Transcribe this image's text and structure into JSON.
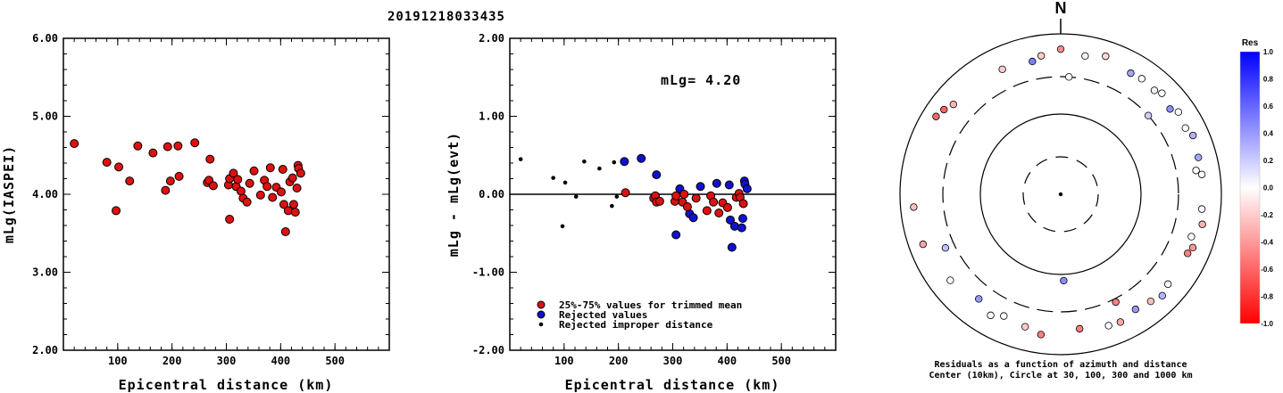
{
  "page_title": "20191218033435",
  "chart_data": [
    {
      "type": "scatter",
      "title": "",
      "xlabel": "Epicentral distance (km)",
      "ylabel": "mLg(IASPEI)",
      "xlim": [
        0,
        600
      ],
      "ylim": [
        2.0,
        6.0
      ],
      "x_ticks": [
        "100",
        "200",
        "300",
        "400",
        "500"
      ],
      "y_ticks": [
        "2.00",
        "3.00",
        "4.00",
        "5.00",
        "6.00"
      ],
      "marker_color": "#dd1111",
      "series": [
        {
          "points": [
            [
              20,
              4.65
            ],
            [
              80,
              4.41
            ],
            [
              97,
              3.79
            ],
            [
              102,
              4.35
            ],
            [
              122,
              4.17
            ],
            [
              137,
              4.62
            ],
            [
              165,
              4.53
            ],
            [
              188,
              4.05
            ],
            [
              192,
              4.61
            ],
            [
              197,
              4.17
            ],
            [
              211,
              4.62
            ],
            [
              213,
              4.23
            ],
            [
              242,
              4.66
            ],
            [
              265,
              4.15
            ],
            [
              268,
              4.18
            ],
            [
              270,
              4.45
            ],
            [
              276,
              4.11
            ],
            [
              304,
              4.12
            ],
            [
              306,
              3.68
            ],
            [
              306,
              4.2
            ],
            [
              313,
              4.27
            ],
            [
              318,
              4.1
            ],
            [
              321,
              4.19
            ],
            [
              327,
              4.04
            ],
            [
              331,
              3.95
            ],
            [
              338,
              3.9
            ],
            [
              343,
              4.14
            ],
            [
              351,
              4.3
            ],
            [
              363,
              3.99
            ],
            [
              370,
              4.18
            ],
            [
              375,
              4.1
            ],
            [
              381,
              4.34
            ],
            [
              385,
              3.96
            ],
            [
              392,
              4.09
            ],
            [
              401,
              4.03
            ],
            [
              404,
              4.32
            ],
            [
              406,
              3.87
            ],
            [
              409,
              3.52
            ],
            [
              414,
              3.79
            ],
            [
              417,
              4.16
            ],
            [
              422,
              4.21
            ],
            [
              424,
              3.87
            ],
            [
              427,
              3.77
            ],
            [
              430,
              4.08
            ],
            [
              432,
              4.37
            ],
            [
              433,
              4.33
            ],
            [
              437,
              4.27
            ]
          ]
        }
      ]
    },
    {
      "type": "scatter",
      "title": "",
      "xlabel": "Epicentral distance (km)",
      "ylabel": "mLg - mLg(evt)",
      "xlim": [
        0,
        600
      ],
      "ylim": [
        -2.0,
        2.0
      ],
      "x_ticks": [
        "100",
        "200",
        "300",
        "400",
        "500"
      ],
      "y_ticks": [
        "-2.00",
        "-1.00",
        "0.00",
        "1.00",
        "2.00"
      ],
      "annotation": "mLg= 4.20",
      "reference_line": 0.0,
      "series": [
        {
          "name": "25%-75% values for trimmed mean",
          "color": "#dd1111",
          "points": [
            [
              213,
              0.02
            ],
            [
              265,
              -0.05
            ],
            [
              268,
              -0.02
            ],
            [
              270,
              -0.1
            ],
            [
              276,
              -0.09
            ],
            [
              304,
              -0.09
            ],
            [
              306,
              -0.02
            ],
            [
              318,
              -0.1
            ],
            [
              321,
              0.0
            ],
            [
              327,
              -0.16
            ],
            [
              343,
              -0.05
            ],
            [
              363,
              -0.21
            ],
            [
              370,
              -0.02
            ],
            [
              375,
              -0.1
            ],
            [
              385,
              -0.24
            ],
            [
              392,
              -0.11
            ],
            [
              401,
              -0.17
            ],
            [
              417,
              -0.04
            ],
            [
              422,
              0.01
            ],
            [
              424,
              -0.04
            ],
            [
              430,
              -0.12
            ]
          ]
        },
        {
          "name": "Rejected values",
          "color": "#1111cc",
          "points": [
            [
              211,
              0.42
            ],
            [
              242,
              0.46
            ],
            [
              270,
              0.25
            ],
            [
              306,
              -0.52
            ],
            [
              313,
              0.07
            ],
            [
              331,
              -0.25
            ],
            [
              338,
              -0.3
            ],
            [
              351,
              0.1
            ],
            [
              381,
              0.14
            ],
            [
              404,
              0.12
            ],
            [
              406,
              -0.33
            ],
            [
              409,
              -0.68
            ],
            [
              414,
              -0.41
            ],
            [
              427,
              -0.43
            ],
            [
              432,
              0.17
            ],
            [
              433,
              0.13
            ],
            [
              437,
              0.07
            ],
            [
              429,
              -0.31
            ]
          ]
        },
        {
          "name": "Rejected improper distance",
          "color": "#000000",
          "points": [
            [
              20,
              0.45
            ],
            [
              80,
              0.21
            ],
            [
              97,
              -0.41
            ],
            [
              102,
              0.15
            ],
            [
              122,
              -0.03
            ],
            [
              137,
              0.42
            ],
            [
              165,
              0.33
            ],
            [
              188,
              -0.15
            ],
            [
              192,
              0.41
            ],
            [
              197,
              -0.03
            ]
          ]
        }
      ]
    },
    {
      "type": "scatter",
      "title": "N",
      "xlabel": "",
      "ylabel": "",
      "caption_lines": [
        "Residuals as a function of azimuth and distance",
        "Center (10km), Circle at 30, 100, 300 and 1000 km"
      ],
      "colorbar": {
        "label": "Res",
        "ticks": [
          "1.0",
          "0.8",
          "0.6",
          "0.4",
          "0.2",
          "0.0",
          "-0.2",
          "-0.4",
          "-0.6",
          "-0.8",
          "-1.0"
        ],
        "range": [
          -1.0,
          1.0
        ]
      },
      "series": [
        {
          "name": "residuals",
          "points": [
            {
              "azimuth": 0,
              "distance_km": 650,
              "res": -0.45
            },
            {
              "azimuth": 10,
              "distance_km": 570,
              "res": 0.05
            },
            {
              "azimuth": 18,
              "distance_km": 650,
              "res": -0.15
            },
            {
              "azimuth": 335,
              "distance_km": 530,
              "res": -0.2
            },
            {
              "azimuth": 348,
              "distance_km": 500,
              "res": 0.5
            },
            {
              "azimuth": 352,
              "distance_km": 560,
              "res": -0.2
            },
            {
              "azimuth": 4,
              "distance_km": 300,
              "res": 0.0
            },
            {
              "azimuth": 30,
              "distance_km": 560,
              "res": 0.35
            },
            {
              "azimuth": 35,
              "distance_km": 580,
              "res": 0.0
            },
            {
              "azimuth": 42,
              "distance_km": 560,
              "res": 0.05
            },
            {
              "azimuth": 45,
              "distance_km": 610,
              "res": 0.0
            },
            {
              "azimuth": 52,
              "distance_km": 540,
              "res": 0.45
            },
            {
              "azimuth": 48,
              "distance_km": 300,
              "res": 0.2
            },
            {
              "azimuth": 55,
              "distance_km": 620,
              "res": 0.0
            },
            {
              "azimuth": 62,
              "distance_km": 580,
              "res": 0.0
            },
            {
              "azimuth": 66,
              "distance_km": 640,
              "res": 0.3
            },
            {
              "azimuth": 75,
              "distance_km": 600,
              "res": 0.35
            },
            {
              "azimuth": 80,
              "distance_km": 520,
              "res": 0.0
            },
            {
              "azimuth": 82,
              "distance_km": 600,
              "res": 0.0
            },
            {
              "azimuth": 96,
              "distance_km": 590,
              "res": 0.0
            },
            {
              "azimuth": 102,
              "distance_km": 640,
              "res": -0.3
            },
            {
              "azimuth": 108,
              "distance_km": 520,
              "res": 0.0
            },
            {
              "azimuth": 112,
              "distance_km": 600,
              "res": -0.4
            },
            {
              "azimuth": 115,
              "distance_km": 560,
              "res": -0.5
            },
            {
              "azimuth": 130,
              "distance_km": 560,
              "res": 0.0
            },
            {
              "azimuth": 135,
              "distance_km": 620,
              "res": 0.3
            },
            {
              "azimuth": 140,
              "distance_km": 560,
              "res": -0.25
            },
            {
              "azimuth": 147,
              "distance_km": 520,
              "res": 0.4
            },
            {
              "azimuth": 155,
              "distance_km": 580,
              "res": -0.35
            },
            {
              "azimuth": 160,
              "distance_km": 560,
              "res": 0.0
            },
            {
              "azimuth": 153,
              "distance_km": 330,
              "res": -0.5
            },
            {
              "azimuth": 172,
              "distance_km": 500,
              "res": -0.5
            },
            {
              "azimuth": 188,
              "distance_km": 590,
              "res": -0.5
            },
            {
              "azimuth": 178,
              "distance_km": 120,
              "res": 0.45
            },
            {
              "azimuth": 195,
              "distance_km": 520,
              "res": -0.2
            },
            {
              "azimuth": 205,
              "distance_km": 480,
              "res": 0.0
            },
            {
              "azimuth": 210,
              "distance_km": 560,
              "res": 0.0
            },
            {
              "azimuth": 218,
              "distance_km": 460,
              "res": 0.4
            },
            {
              "azimuth": 232,
              "distance_km": 560,
              "res": 0.0
            },
            {
              "azimuth": 245,
              "distance_km": 390,
              "res": 0.25
            },
            {
              "azimuth": 250,
              "distance_km": 670,
              "res": -0.35
            },
            {
              "azimuth": 265,
              "distance_km": 690,
              "res": -0.25
            },
            {
              "azimuth": 302,
              "distance_km": 680,
              "res": -0.6
            },
            {
              "azimuth": 306,
              "distance_km": 630,
              "res": -0.6
            },
            {
              "azimuth": 310,
              "distance_km": 560,
              "res": -0.3
            }
          ]
        }
      ]
    }
  ]
}
